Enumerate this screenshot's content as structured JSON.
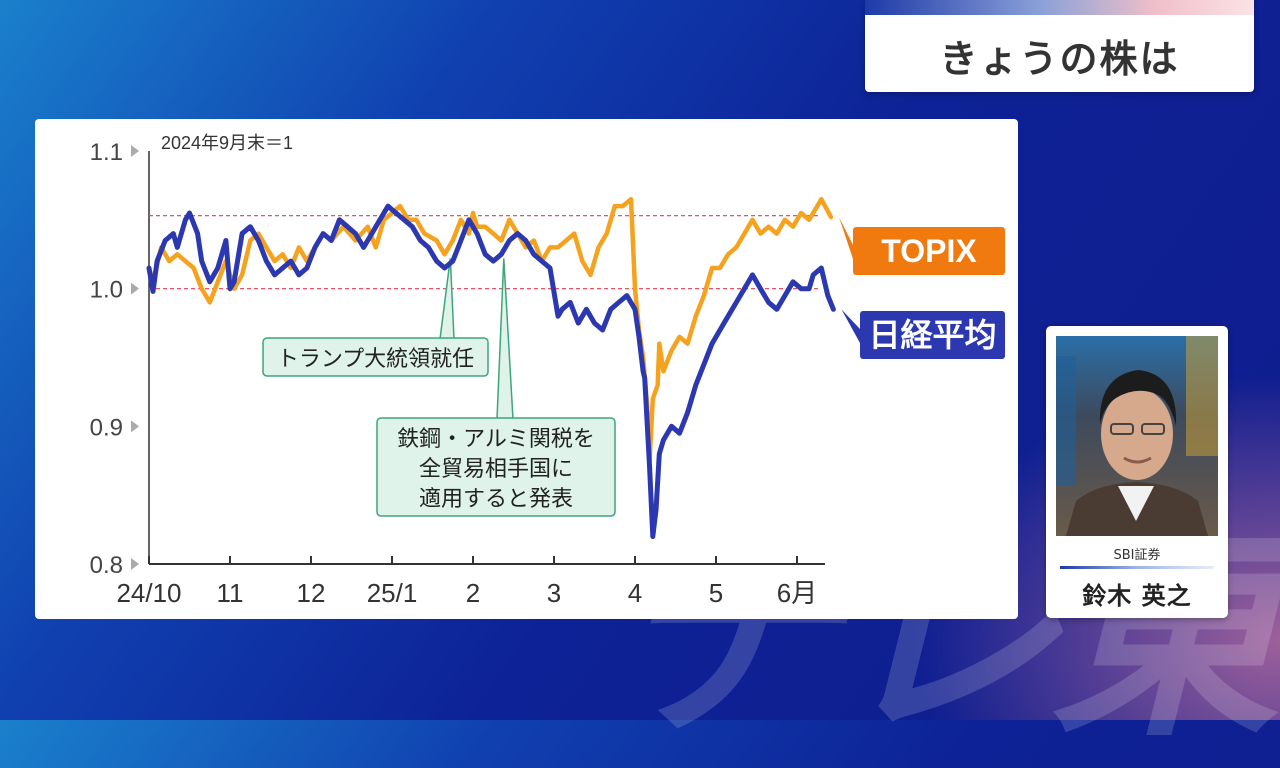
{
  "header": {
    "title": "きょうの株は"
  },
  "watermark": "テレ東",
  "speaker": {
    "company": "SBI証券",
    "name": "鈴木 英之"
  },
  "chart_data": {
    "type": "line",
    "note": "2024年9月末＝1",
    "y_ticks": [
      {
        "v": 1.1,
        "label": "1.1"
      },
      {
        "v": 1.0,
        "label": "1.0"
      },
      {
        "v": 0.9,
        "label": "0.9"
      },
      {
        "v": 0.8,
        "label": "0.8"
      }
    ],
    "ylim": [
      0.8,
      1.1
    ],
    "x_ticks": [
      {
        "m": 0,
        "label": "24/10"
      },
      {
        "m": 1,
        "label": "11"
      },
      {
        "m": 2,
        "label": "12"
      },
      {
        "m": 3,
        "label": "25/1"
      },
      {
        "m": 4,
        "label": "2"
      },
      {
        "m": 5,
        "label": "3"
      },
      {
        "m": 6,
        "label": "4"
      },
      {
        "m": 7,
        "label": "5"
      },
      {
        "m": 8,
        "label": "6月"
      }
    ],
    "reference_lines": [
      1.053,
      1.0
    ],
    "series": [
      {
        "name": "TOPIX",
        "color": "#f5a21f",
        "label_bg": "#f07a10",
        "points": [
          [
            0.0,
            1.015
          ],
          [
            0.05,
            1.005
          ],
          [
            0.15,
            1.03
          ],
          [
            0.25,
            1.02
          ],
          [
            0.35,
            1.025
          ],
          [
            0.45,
            1.02
          ],
          [
            0.55,
            1.015
          ],
          [
            0.65,
            1.0
          ],
          [
            0.75,
            0.99
          ],
          [
            0.85,
            1.005
          ],
          [
            0.95,
            1.02
          ],
          [
            1.05,
            1.0
          ],
          [
            1.15,
            1.01
          ],
          [
            1.25,
            1.035
          ],
          [
            1.35,
            1.04
          ],
          [
            1.45,
            1.03
          ],
          [
            1.55,
            1.02
          ],
          [
            1.65,
            1.025
          ],
          [
            1.75,
            1.015
          ],
          [
            1.85,
            1.03
          ],
          [
            1.95,
            1.02
          ],
          [
            2.05,
            1.03
          ],
          [
            2.15,
            1.04
          ],
          [
            2.25,
            1.035
          ],
          [
            2.4,
            1.045
          ],
          [
            2.55,
            1.035
          ],
          [
            2.7,
            1.045
          ],
          [
            2.8,
            1.03
          ],
          [
            2.9,
            1.05
          ],
          [
            3.0,
            1.055
          ],
          [
            3.1,
            1.06
          ],
          [
            3.2,
            1.05
          ],
          [
            3.3,
            1.05
          ],
          [
            3.4,
            1.04
          ],
          [
            3.55,
            1.035
          ],
          [
            3.65,
            1.025
          ],
          [
            3.75,
            1.035
          ],
          [
            3.85,
            1.05
          ],
          [
            3.95,
            1.04
          ],
          [
            4.0,
            1.055
          ],
          [
            4.05,
            1.045
          ],
          [
            4.15,
            1.045
          ],
          [
            4.25,
            1.04
          ],
          [
            4.35,
            1.035
          ],
          [
            4.45,
            1.05
          ],
          [
            4.55,
            1.04
          ],
          [
            4.65,
            1.03
          ],
          [
            4.75,
            1.035
          ],
          [
            4.85,
            1.02
          ],
          [
            4.95,
            1.03
          ],
          [
            5.05,
            1.03
          ],
          [
            5.15,
            1.035
          ],
          [
            5.25,
            1.04
          ],
          [
            5.35,
            1.02
          ],
          [
            5.45,
            1.01
          ],
          [
            5.55,
            1.03
          ],
          [
            5.65,
            1.04
          ],
          [
            5.75,
            1.06
          ],
          [
            5.85,
            1.06
          ],
          [
            5.95,
            1.065
          ],
          [
            6.0,
            1.0
          ],
          [
            6.05,
            0.97
          ],
          [
            6.1,
            0.95
          ],
          [
            6.15,
            0.915
          ],
          [
            6.18,
            0.875
          ],
          [
            6.22,
            0.92
          ],
          [
            6.28,
            0.93
          ],
          [
            6.3,
            0.96
          ],
          [
            6.35,
            0.94
          ],
          [
            6.45,
            0.955
          ],
          [
            6.55,
            0.965
          ],
          [
            6.65,
            0.96
          ],
          [
            6.75,
            0.98
          ],
          [
            6.85,
            0.995
          ],
          [
            6.95,
            1.015
          ],
          [
            7.05,
            1.015
          ],
          [
            7.15,
            1.025
          ],
          [
            7.25,
            1.03
          ],
          [
            7.35,
            1.04
          ],
          [
            7.45,
            1.05
          ],
          [
            7.55,
            1.04
          ],
          [
            7.65,
            1.045
          ],
          [
            7.75,
            1.04
          ],
          [
            7.85,
            1.05
          ],
          [
            7.95,
            1.045
          ],
          [
            8.05,
            1.055
          ],
          [
            8.15,
            1.05
          ],
          [
            8.25,
            1.06
          ],
          [
            8.3,
            1.065
          ],
          [
            8.42,
            1.052
          ]
        ]
      },
      {
        "name": "日経平均",
        "color": "#2c38b0",
        "label_bg": "#2c38b0",
        "points": [
          [
            0.0,
            1.015
          ],
          [
            0.05,
            0.998
          ],
          [
            0.1,
            1.02
          ],
          [
            0.2,
            1.035
          ],
          [
            0.3,
            1.04
          ],
          [
            0.35,
            1.03
          ],
          [
            0.45,
            1.05
          ],
          [
            0.5,
            1.055
          ],
          [
            0.6,
            1.04
          ],
          [
            0.65,
            1.02
          ],
          [
            0.75,
            1.005
          ],
          [
            0.85,
            1.015
          ],
          [
            0.95,
            1.035
          ],
          [
            1.0,
            1.0
          ],
          [
            1.05,
            1.005
          ],
          [
            1.15,
            1.04
          ],
          [
            1.25,
            1.045
          ],
          [
            1.35,
            1.035
          ],
          [
            1.45,
            1.02
          ],
          [
            1.55,
            1.01
          ],
          [
            1.65,
            1.015
          ],
          [
            1.75,
            1.02
          ],
          [
            1.85,
            1.01
          ],
          [
            1.95,
            1.015
          ],
          [
            2.05,
            1.03
          ],
          [
            2.15,
            1.04
          ],
          [
            2.25,
            1.035
          ],
          [
            2.35,
            1.05
          ],
          [
            2.45,
            1.045
          ],
          [
            2.55,
            1.04
          ],
          [
            2.65,
            1.03
          ],
          [
            2.75,
            1.04
          ],
          [
            2.85,
            1.05
          ],
          [
            2.95,
            1.06
          ],
          [
            3.05,
            1.055
          ],
          [
            3.15,
            1.05
          ],
          [
            3.25,
            1.045
          ],
          [
            3.35,
            1.035
          ],
          [
            3.45,
            1.03
          ],
          [
            3.55,
            1.02
          ],
          [
            3.65,
            1.015
          ],
          [
            3.75,
            1.02
          ],
          [
            3.85,
            1.035
          ],
          [
            3.95,
            1.05
          ],
          [
            4.05,
            1.04
          ],
          [
            4.15,
            1.025
          ],
          [
            4.25,
            1.02
          ],
          [
            4.35,
            1.025
          ],
          [
            4.45,
            1.035
          ],
          [
            4.55,
            1.04
          ],
          [
            4.65,
            1.035
          ],
          [
            4.75,
            1.025
          ],
          [
            4.85,
            1.02
          ],
          [
            4.95,
            1.015
          ],
          [
            5.05,
            0.98
          ],
          [
            5.1,
            0.985
          ],
          [
            5.2,
            0.99
          ],
          [
            5.3,
            0.975
          ],
          [
            5.4,
            0.985
          ],
          [
            5.5,
            0.975
          ],
          [
            5.6,
            0.97
          ],
          [
            5.7,
            0.985
          ],
          [
            5.8,
            0.99
          ],
          [
            5.9,
            0.995
          ],
          [
            6.0,
            0.985
          ],
          [
            6.05,
            0.965
          ],
          [
            6.1,
            0.94
          ],
          [
            6.12,
            0.935
          ],
          [
            6.18,
            0.87
          ],
          [
            6.22,
            0.82
          ],
          [
            6.26,
            0.84
          ],
          [
            6.3,
            0.88
          ],
          [
            6.35,
            0.89
          ],
          [
            6.45,
            0.9
          ],
          [
            6.55,
            0.895
          ],
          [
            6.65,
            0.91
          ],
          [
            6.75,
            0.93
          ],
          [
            6.85,
            0.945
          ],
          [
            6.95,
            0.96
          ],
          [
            7.05,
            0.97
          ],
          [
            7.15,
            0.98
          ],
          [
            7.25,
            0.99
          ],
          [
            7.35,
            1.0
          ],
          [
            7.45,
            1.01
          ],
          [
            7.55,
            1.0
          ],
          [
            7.65,
            0.99
          ],
          [
            7.75,
            0.985
          ],
          [
            7.85,
            0.995
          ],
          [
            7.95,
            1.005
          ],
          [
            8.05,
            1.0
          ],
          [
            8.15,
            1.0
          ],
          [
            8.2,
            1.01
          ],
          [
            8.3,
            1.015
          ],
          [
            8.38,
            0.995
          ],
          [
            8.45,
            0.985
          ]
        ]
      }
    ],
    "annotations": [
      {
        "lines": [
          "トランプ大統領就任"
        ],
        "at_x": 3.72,
        "at_y": 1.022
      },
      {
        "lines": [
          "鉄鋼・アルミ関税を",
          "全貿易相手国に",
          "適用すると発表"
        ],
        "at_x": 4.38,
        "at_y": 1.022
      }
    ]
  }
}
